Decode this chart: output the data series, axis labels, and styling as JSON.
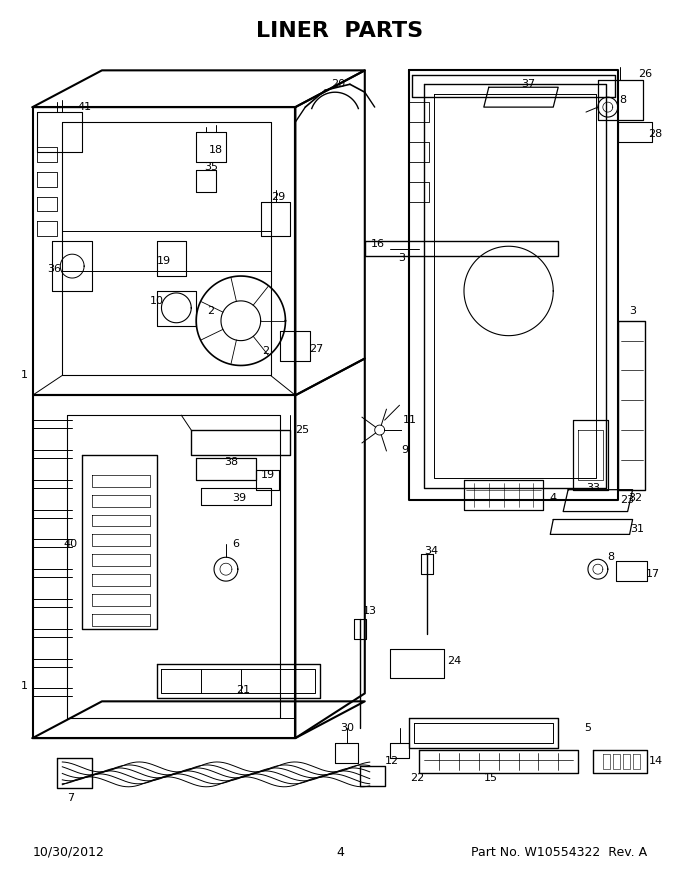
{
  "title": "LINER  PARTS",
  "title_fontsize": 16,
  "title_weight": "bold",
  "footer_left": "10/30/2012",
  "footer_center": "4",
  "footer_right": "Part No. W10554322  Rev. A",
  "footer_fontsize": 9,
  "bg_color": "#ffffff",
  "fig_width": 6.8,
  "fig_height": 8.8,
  "dpi": 100
}
